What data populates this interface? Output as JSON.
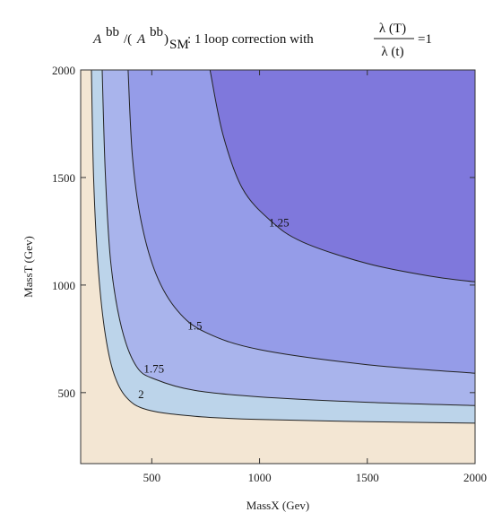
{
  "title": {
    "lhs_main": "A",
    "lhs_sup": "bb",
    "slash_paren_open": "/(",
    "lhs_den_main": "A",
    "lhs_den_sup": "bb",
    "paren_close": ")",
    "lhs_den_sub": "SM",
    "text": ": 1 loop  correction   with",
    "frac_num": "λ (T)",
    "frac_den": "λ (t)",
    "rhs": "=1"
  },
  "colors": {
    "level_lt_2": "#f3e6d3",
    "level_2_175": "#bcd4ea",
    "level_175_15": "#a9b4ec",
    "level_15_125": "#959ce8",
    "level_gt_125": "#7f78dc",
    "contour_line": "#222222",
    "frame": "#333333"
  },
  "chart_data": {
    "type": "contour",
    "xlabel": "MassX (Gev)",
    "ylabel": "MassT (Gev)",
    "xlim": [
      170,
      2000
    ],
    "ylim": [
      170,
      2000
    ],
    "xticks": [
      500,
      1000,
      1500,
      2000
    ],
    "yticks": [
      500,
      1000,
      1500,
      2000
    ],
    "contours": [
      {
        "label": "2",
        "label_at": [
          450,
          490
        ],
        "points": [
          [
            220,
            2000
          ],
          [
            230,
            1500
          ],
          [
            250,
            1100
          ],
          [
            280,
            800
          ],
          [
            320,
            600
          ],
          [
            380,
            480
          ],
          [
            480,
            420
          ],
          [
            700,
            390
          ],
          [
            1000,
            375
          ],
          [
            1500,
            365
          ],
          [
            2000,
            358
          ]
        ]
      },
      {
        "label": "1.75",
        "label_at": [
          510,
          610
        ],
        "points": [
          [
            270,
            2000
          ],
          [
            285,
            1500
          ],
          [
            310,
            1100
          ],
          [
            360,
            800
          ],
          [
            430,
            620
          ],
          [
            520,
            560
          ],
          [
            700,
            510
          ],
          [
            1000,
            480
          ],
          [
            1500,
            455
          ],
          [
            2000,
            440
          ]
        ]
      },
      {
        "label": "1.5",
        "label_at": [
          700,
          810
        ],
        "points": [
          [
            390,
            2000
          ],
          [
            410,
            1600
          ],
          [
            450,
            1300
          ],
          [
            520,
            1050
          ],
          [
            620,
            880
          ],
          [
            750,
            780
          ],
          [
            1000,
            700
          ],
          [
            1500,
            630
          ],
          [
            2000,
            590
          ]
        ]
      },
      {
        "label": "1.25",
        "label_at": [
          1090,
          1290
        ],
        "points": [
          [
            770,
            2000
          ],
          [
            830,
            1700
          ],
          [
            920,
            1450
          ],
          [
            1050,
            1300
          ],
          [
            1200,
            1200
          ],
          [
            1500,
            1100
          ],
          [
            1800,
            1040
          ],
          [
            2000,
            1015
          ]
        ]
      }
    ]
  }
}
